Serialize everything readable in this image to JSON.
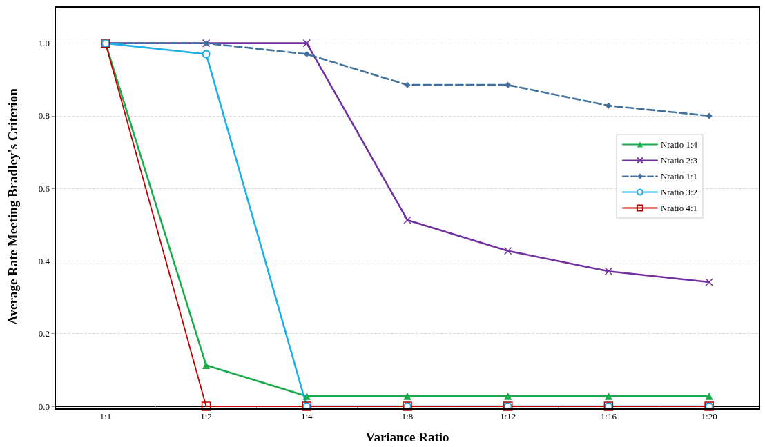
{
  "chart_data": {
    "type": "line",
    "xlabel": "Variance Ratio",
    "ylabel": "Average Rate Meeting Bradley's Criterion",
    "categories": [
      "1:1",
      "1:2",
      "1:4",
      "1:8",
      "1:12",
      "1:16",
      "1:20"
    ],
    "series": [
      {
        "name": "Nratio 1:4",
        "color": "#1aaa4a",
        "marker": "triangle",
        "line_style": "solid",
        "values": [
          1.0,
          0.113,
          0.028,
          0.028,
          0.028,
          0.028,
          0.028
        ]
      },
      {
        "name": "Nratio 2:3",
        "color": "#7030a0",
        "marker": "cross",
        "line_style": "solid",
        "values": [
          1.0,
          1.0,
          1.0,
          0.513,
          0.428,
          0.372,
          0.342
        ]
      },
      {
        "name": "Nratio 1:1",
        "color": "#41719c",
        "marker": "diamond",
        "line_style": "dashed",
        "values": [
          1.0,
          1.0,
          0.97,
          0.885,
          0.885,
          0.828,
          0.8
        ]
      },
      {
        "name": "Nratio 3:2",
        "color": "#1ab0e8",
        "marker": "circle",
        "line_style": "solid",
        "values": [
          1.0,
          0.97,
          0.0,
          0.0,
          0.0,
          0.0,
          0.0
        ]
      },
      {
        "name": "Nratio 4:1",
        "color": "#c00000",
        "marker": "square",
        "line_style": "solid",
        "values": [
          1.0,
          0.0,
          0.0,
          0.0,
          0.0,
          0.0,
          0.0
        ]
      }
    ],
    "ylim": [
      0,
      1.1
    ],
    "yticks": [
      {
        "value": 0,
        "label": "0.0"
      },
      0.2,
      0.4,
      0.6,
      0.8,
      {
        "value": 1,
        "label": "1.0"
      }
    ],
    "grid": "y",
    "legend": "right"
  }
}
